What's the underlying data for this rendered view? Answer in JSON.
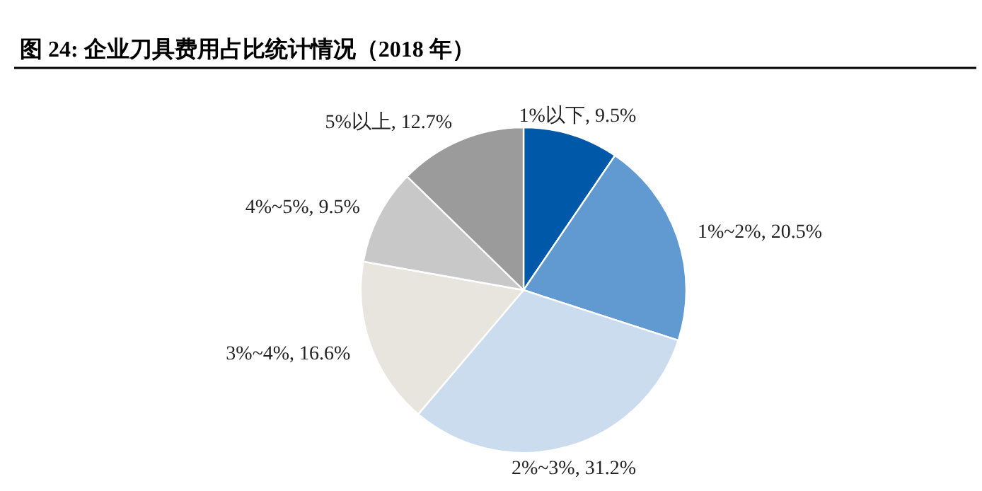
{
  "chart_data": {
    "type": "pie",
    "title": "图 24:  企业刀具费用占比统计情况（2018 年）",
    "categories": [
      "1%以下",
      "1%~2%",
      "2%~3%",
      "3%~4%",
      "4%~5%",
      "5%以上"
    ],
    "values": [
      9.5,
      20.5,
      31.2,
      16.6,
      9.5,
      12.7
    ],
    "value_labels": [
      "9.5%",
      "20.5%",
      "31.2%",
      "16.6%",
      "9.5%",
      "12.7%"
    ],
    "colors": [
      "#0058a9",
      "#609ad1",
      "#cbdcef",
      "#e8e5df",
      "#c8c8c8",
      "#9b9b9b"
    ]
  }
}
